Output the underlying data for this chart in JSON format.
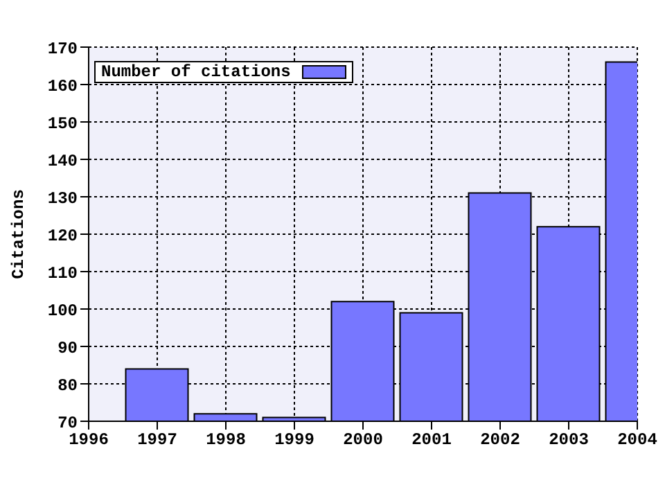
{
  "chart_data": {
    "type": "bar",
    "ylabel": "Citations",
    "x": [
      1997,
      1998,
      1999,
      2000,
      2001,
      2002,
      2003,
      2004
    ],
    "series": [
      {
        "name": "Number of citations",
        "color": "#7777ff",
        "values": [
          84,
          72,
          71,
          102,
          99,
          131,
          122,
          166
        ]
      }
    ],
    "xlim": [
      1996,
      2004
    ],
    "xticks": [
      1996,
      1997,
      1998,
      1999,
      2000,
      2001,
      2002,
      2003,
      2004
    ],
    "ylim": [
      70,
      170
    ],
    "yticks": [
      70,
      80,
      90,
      100,
      110,
      120,
      130,
      140,
      150,
      160,
      170
    ],
    "grid": true,
    "legend": "top left"
  }
}
